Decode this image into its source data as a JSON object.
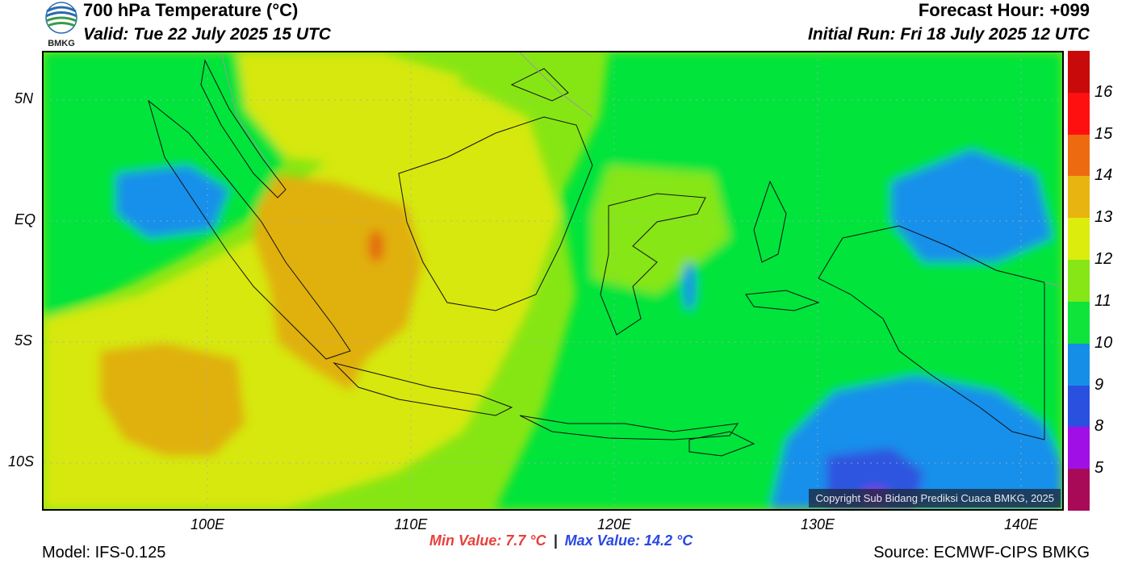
{
  "header": {
    "title": "700 hPa Temperature (°C)",
    "valid": "Valid: Tue 22 July 2025 15 UTC",
    "forecast_hour": "Forecast Hour: +099",
    "initial_run": "Initial Run: Fri 18 July 2025 12 UTC",
    "logo_text": "BMKG"
  },
  "map": {
    "lat_labels": [
      "5N",
      "EQ",
      "5S",
      "10S"
    ],
    "lon_labels": [
      "100E",
      "110E",
      "120E",
      "130E",
      "140E"
    ],
    "copyright": "Copyright Sub Bidang Prediksi Cuaca BMKG, 2025",
    "field_colors": {
      "t9": "#1590ea",
      "t10": "#05e43a",
      "t11": "#86e614",
      "t12": "#d6e80c",
      "t13": "#e0b010",
      "t14": "#e46c10",
      "t8": "#2d54e0",
      "t7": "#a010e6"
    }
  },
  "colorbar": {
    "labels": [
      "16",
      "15",
      "14",
      "13",
      "12",
      "11",
      "10",
      "9",
      "8",
      "5"
    ],
    "colors": [
      "#c80a0a",
      "#ff1010",
      "#ee6a10",
      "#e8b410",
      "#dced0e",
      "#86e616",
      "#0ee43a",
      "#158ee8",
      "#2a50e0",
      "#a010e6",
      "#a80a58"
    ]
  },
  "stats": {
    "min_label": "Min Value: 7.7 °C",
    "separator": "|",
    "max_label": "Max Value: 14.2 °C"
  },
  "footer": {
    "model": "Model: IFS-0.125",
    "source": "Source: ECMWF-CIPS BMKG"
  }
}
